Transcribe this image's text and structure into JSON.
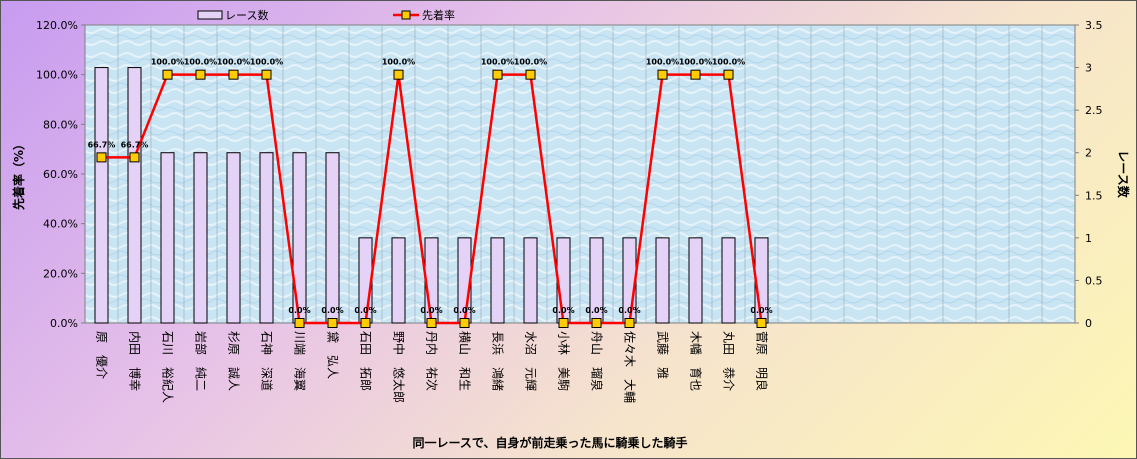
{
  "chart_data": {
    "type": "bar+line",
    "categories": [
      "原　優介",
      "内田　博幸",
      "石川　裕紀人",
      "岩部　純二",
      "杉原　誠人",
      "石神　深道",
      "川端　海翼",
      "黛　弘人",
      "石田　拓郎",
      "野中　悠太郎",
      "丹内　祐次",
      "横山　和生",
      "長浜　鴻緒",
      "水沼　元輝",
      "小林　美駒",
      "舟山　瑠泉",
      "佐々木　大輔",
      "武藤　雅",
      "木幡　育也",
      "丸田　恭介",
      "菅原　明良"
    ],
    "series": [
      {
        "name": "レース数",
        "type": "bar",
        "axis": "right",
        "values": [
          3,
          3,
          2,
          2,
          2,
          2,
          2,
          2,
          1,
          1,
          1,
          1,
          1,
          1,
          1,
          1,
          1,
          1,
          1,
          1,
          1
        ]
      },
      {
        "name": "先着率",
        "type": "line",
        "axis": "left",
        "values": [
          66.7,
          66.7,
          100,
          100,
          100,
          100,
          0,
          0,
          0,
          100,
          0,
          0,
          100,
          100,
          0,
          0,
          0,
          100,
          100,
          100,
          0
        ],
        "labels": [
          "66.7%",
          "66.7%",
          "100.0%",
          "100.0%",
          "100.0%",
          "100.0%",
          "0.0%",
          "0.0%",
          "0.0%",
          "100.0%",
          "0.0%",
          "0.0%",
          "100.0%",
          "100.0%",
          "0.0%",
          "0.0%",
          "0.0%",
          "100.0%",
          "100.0%",
          "100.0%",
          "0.0%"
        ]
      }
    ],
    "slots": 30,
    "y_left": {
      "label": "先着率（%）",
      "range": [
        0,
        120
      ],
      "ticks": [
        "0.0%",
        "20.0%",
        "40.0%",
        "60.0%",
        "80.0%",
        "100.0%",
        "120.0%"
      ]
    },
    "y_right": {
      "label": "レース数",
      "range": [
        0,
        3.5
      ],
      "ticks": [
        "0",
        "0.5",
        "1",
        "1.5",
        "2",
        "2.5",
        "3",
        "3.5"
      ]
    },
    "xlabel": "同一レースで、自身が前走乗った馬に騎乗した騎手",
    "legend_position": "top",
    "colors": {
      "bar_fill": "#e4d2f7",
      "bar_stroke": "#000000",
      "line": "#ff0000",
      "marker": "#ffcc00",
      "plot_bg": "#c9e4f2"
    }
  }
}
